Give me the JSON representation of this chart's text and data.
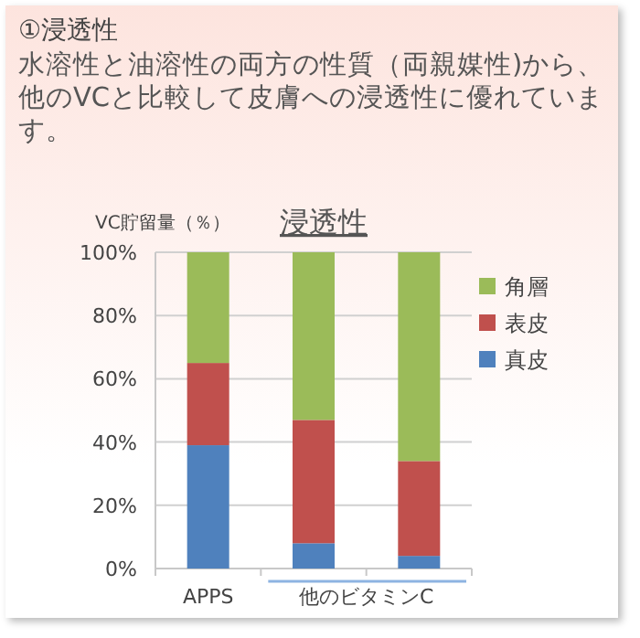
{
  "chart_data": {
    "type": "bar",
    "stacked": true,
    "title": "浸透性",
    "ylabel": "VC貯留量（％）",
    "categories": [
      "APPS",
      null,
      null
    ],
    "series": [
      {
        "name": "真皮",
        "color": "#4f81bd",
        "values": [
          39,
          8,
          4
        ]
      },
      {
        "name": "表皮",
        "color": "#c0504d",
        "values": [
          26,
          39,
          30
        ]
      },
      {
        "name": "角層",
        "color": "#9bbb59",
        "values": [
          35,
          53,
          66
        ]
      }
    ],
    "ylim": [
      0,
      100
    ],
    "yticks": [
      {
        "value": 0,
        "label": "0%"
      },
      {
        "value": 20,
        "label": "20%"
      },
      {
        "value": 40,
        "label": "40%"
      },
      {
        "value": 60,
        "label": "60%"
      },
      {
        "value": 80,
        "label": "80%"
      },
      {
        "value": 100,
        "label": "100%"
      }
    ],
    "grid": "y",
    "legend": "right",
    "annotations": [
      "①浸透性",
      "水溶性と油溶性の両方の性質（両親媒性)から、他のVCと比較して皮膚への浸透性に優れています。",
      "他のビタミンC"
    ]
  }
}
